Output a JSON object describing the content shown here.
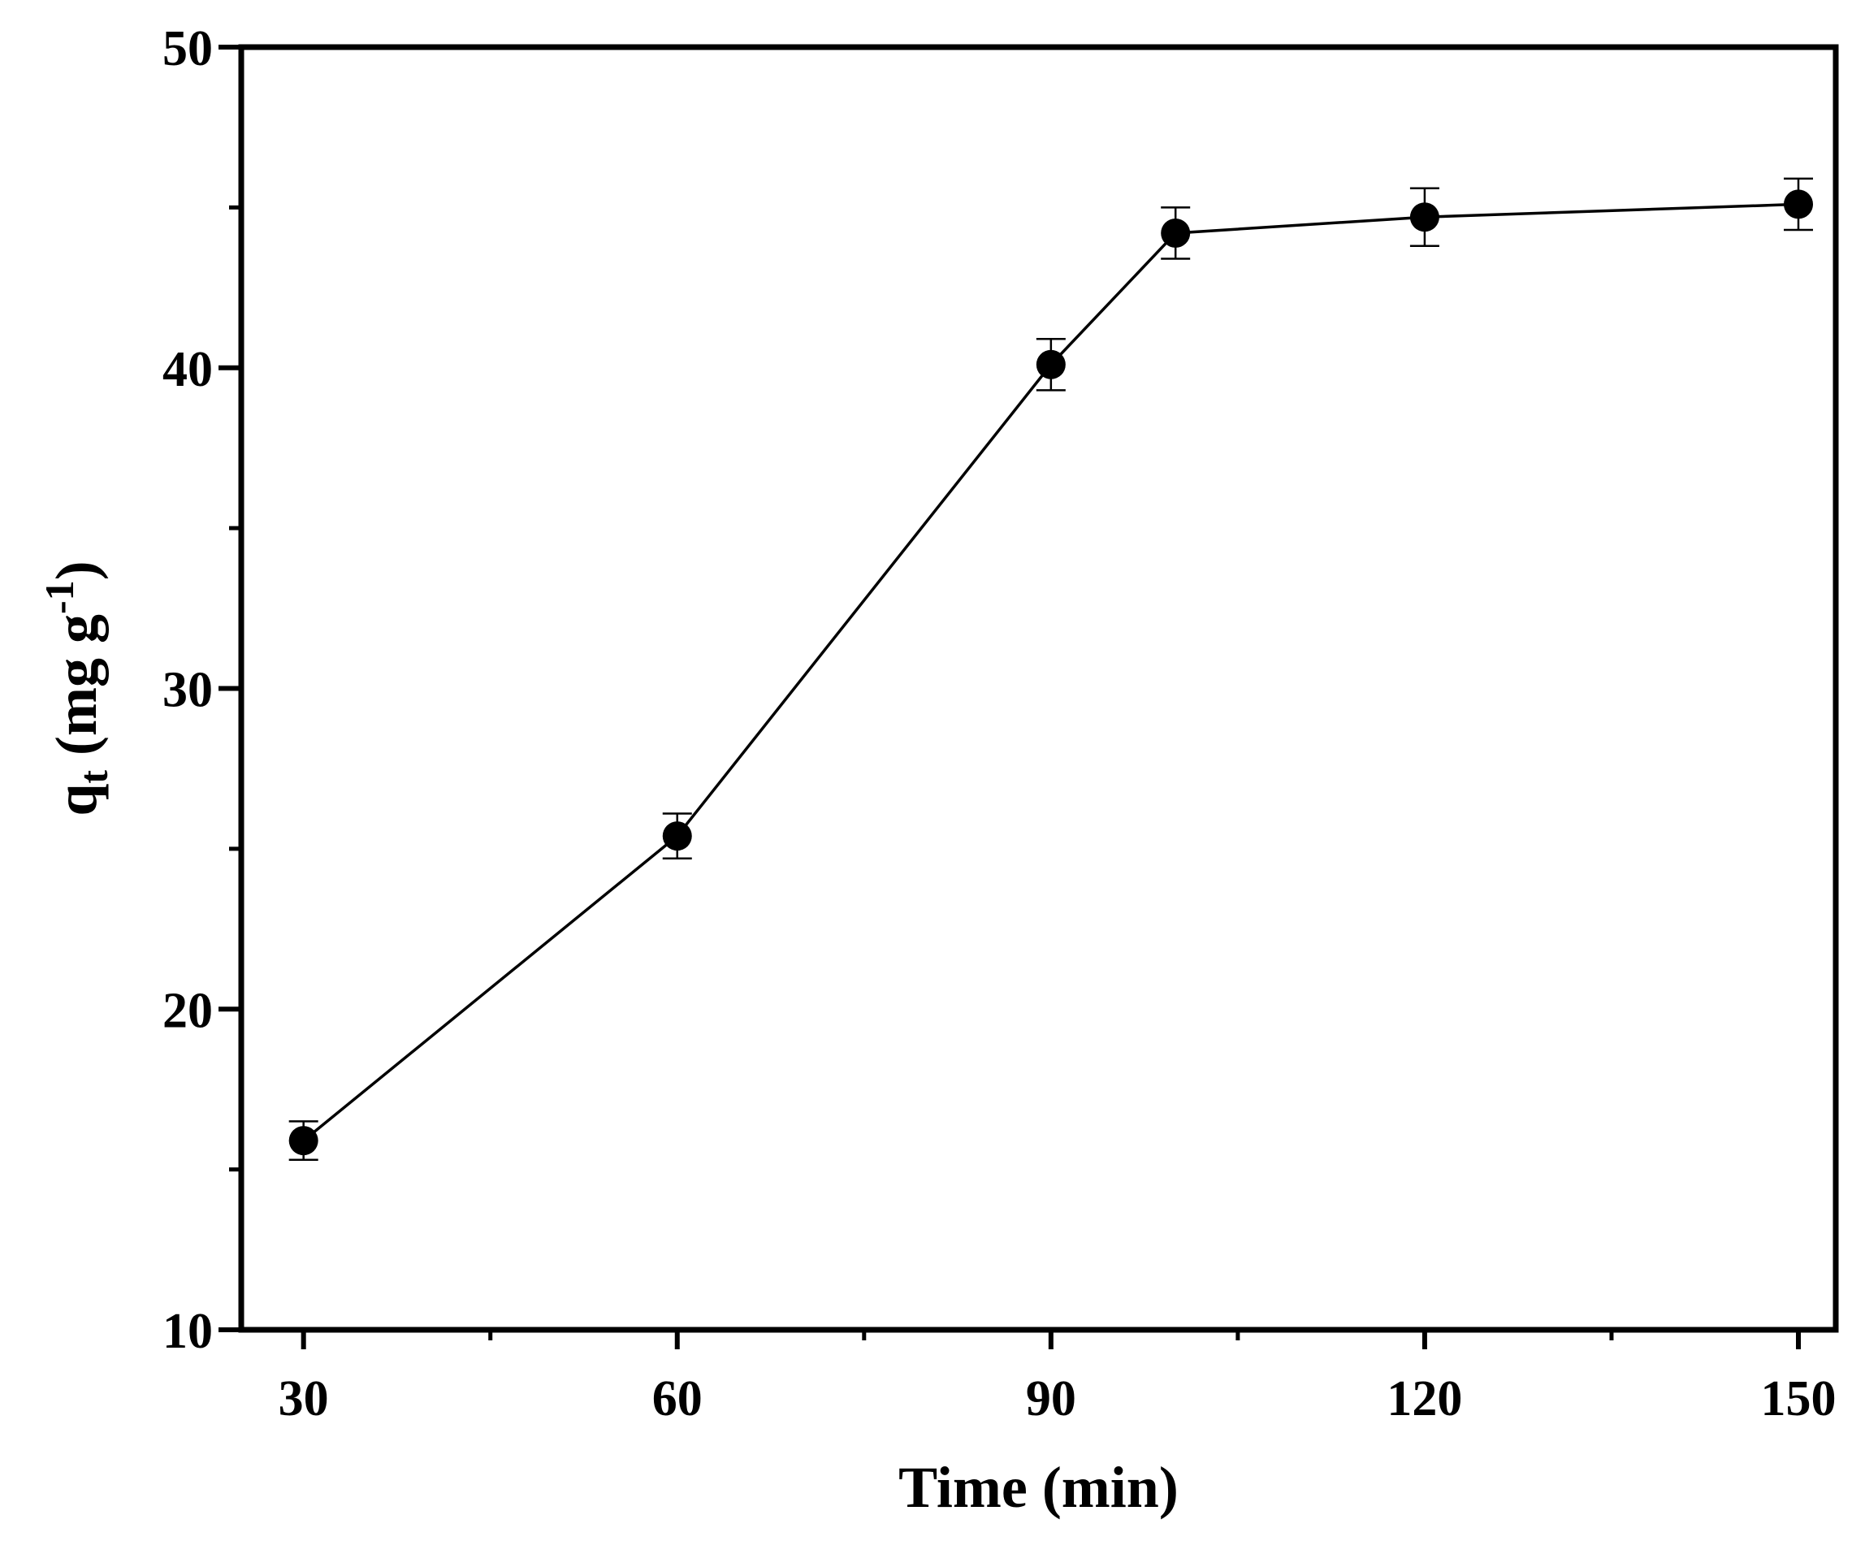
{
  "chart_data": {
    "type": "line",
    "xlabel": "Time (min)",
    "ylabel": {
      "main": "q",
      "subscript": "t",
      "unit_open": " (mg g",
      "superscript": "-1",
      "unit_close": ")"
    },
    "xlim": [
      25,
      153
    ],
    "ylim": [
      10,
      50
    ],
    "x_ticks": [
      30,
      60,
      90,
      120,
      150
    ],
    "x_minor_ticks": [
      45,
      75,
      105,
      135
    ],
    "y_ticks": [
      10,
      20,
      30,
      40,
      50
    ],
    "y_minor_ticks": [
      15,
      25,
      35,
      45
    ],
    "grid": false,
    "series": [
      {
        "x": [
          30,
          60,
          90,
          100,
          120,
          150
        ],
        "y": [
          15.9,
          25.4,
          40.1,
          44.2,
          44.7,
          45.1
        ],
        "error": [
          0.6,
          0.7,
          0.8,
          0.8,
          0.9,
          0.8
        ],
        "color": "#000000",
        "marker": "circle"
      }
    ]
  }
}
